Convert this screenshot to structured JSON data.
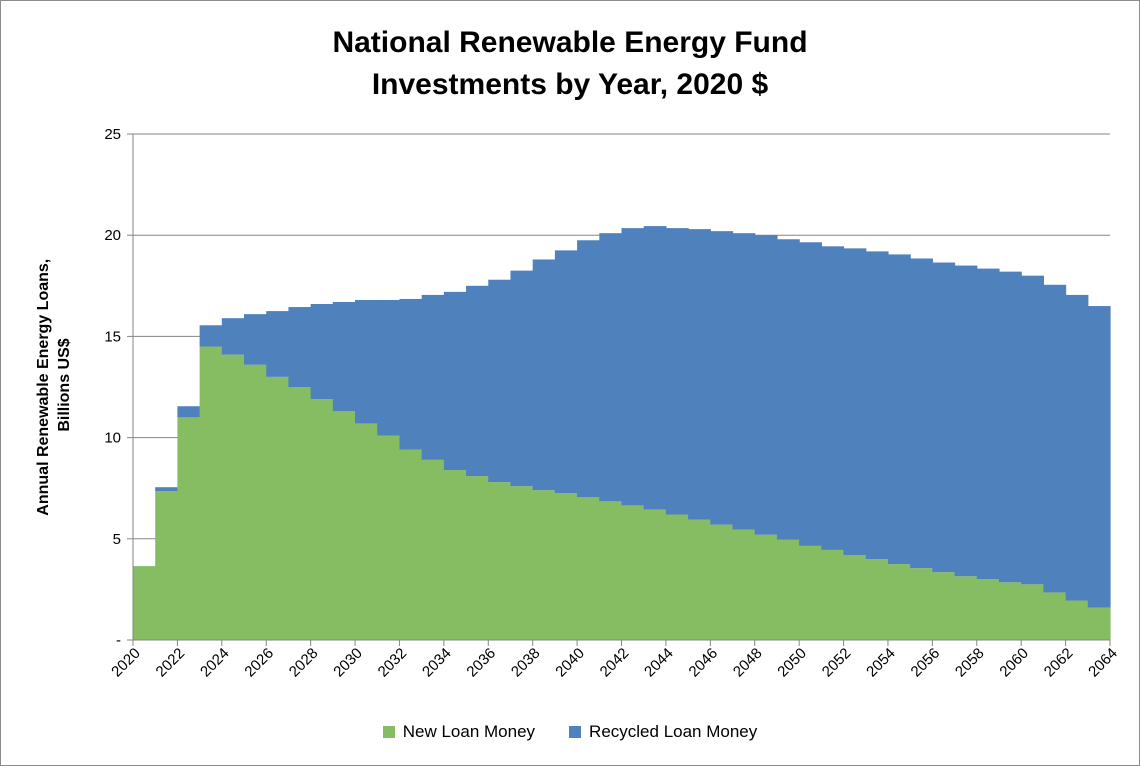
{
  "chart_data": {
    "type": "area",
    "title_line1": "National Renewable Energy Fund",
    "title_line2": "Investments by Year, 2020 $",
    "ylabel_line1": "Annual Renewable Energy Loans,",
    "ylabel_line2": "Billions US$",
    "xlabel": "",
    "ylim": [
      0,
      25
    ],
    "yticks": [
      {
        "value": 0,
        "label": "-"
      },
      {
        "value": 5,
        "label": "5"
      },
      {
        "value": 10,
        "label": "10"
      },
      {
        "value": 15,
        "label": "15"
      },
      {
        "value": 20,
        "label": "20"
      },
      {
        "value": 25,
        "label": "25"
      }
    ],
    "xticks": [
      "2020",
      "2022",
      "2024",
      "2026",
      "2028",
      "2030",
      "2032",
      "2034",
      "2036",
      "2038",
      "2040",
      "2042",
      "2044",
      "2046",
      "2048",
      "2050",
      "2052",
      "2054",
      "2056",
      "2058",
      "2060",
      "2062",
      "2064"
    ],
    "x": [
      2020,
      2021,
      2022,
      2023,
      2024,
      2025,
      2026,
      2027,
      2028,
      2029,
      2030,
      2031,
      2032,
      2033,
      2034,
      2035,
      2036,
      2037,
      2038,
      2039,
      2040,
      2041,
      2042,
      2043,
      2044,
      2045,
      2046,
      2047,
      2048,
      2049,
      2050,
      2051,
      2052,
      2053,
      2054,
      2055,
      2056,
      2057,
      2058,
      2059,
      2060,
      2061,
      2062,
      2063,
      2064
    ],
    "grid": "horizontal",
    "legend_position": "bottom",
    "series": [
      {
        "name": "New Loan Money",
        "color": "#86bc62",
        "values": [
          0,
          3.65,
          7.35,
          11.0,
          14.5,
          14.1,
          13.6,
          13.0,
          12.5,
          11.9,
          11.3,
          10.7,
          10.1,
          9.4,
          8.9,
          8.4,
          8.1,
          7.8,
          7.6,
          7.4,
          7.25,
          7.05,
          6.85,
          6.65,
          6.45,
          6.2,
          5.95,
          5.7,
          5.45,
          5.2,
          4.95,
          4.65,
          4.45,
          4.2,
          4.0,
          3.75,
          3.55,
          3.35,
          3.15,
          3.0,
          2.85,
          2.75,
          2.35,
          1.95,
          1.6
        ]
      },
      {
        "name": "Recycled Loan Money",
        "color": "#4f81bd",
        "values": [
          0,
          0,
          0.2,
          0.55,
          1.05,
          1.8,
          2.5,
          3.25,
          3.95,
          4.7,
          5.4,
          6.1,
          6.7,
          7.45,
          8.15,
          8.8,
          9.4,
          10.0,
          10.65,
          11.4,
          12.0,
          12.7,
          13.25,
          13.7,
          14.0,
          14.15,
          14.35,
          14.5,
          14.65,
          14.8,
          14.85,
          15.0,
          15.0,
          15.15,
          15.2,
          15.3,
          15.3,
          15.3,
          15.35,
          15.35,
          15.35,
          15.25,
          15.2,
          15.1,
          14.9
        ]
      }
    ]
  }
}
